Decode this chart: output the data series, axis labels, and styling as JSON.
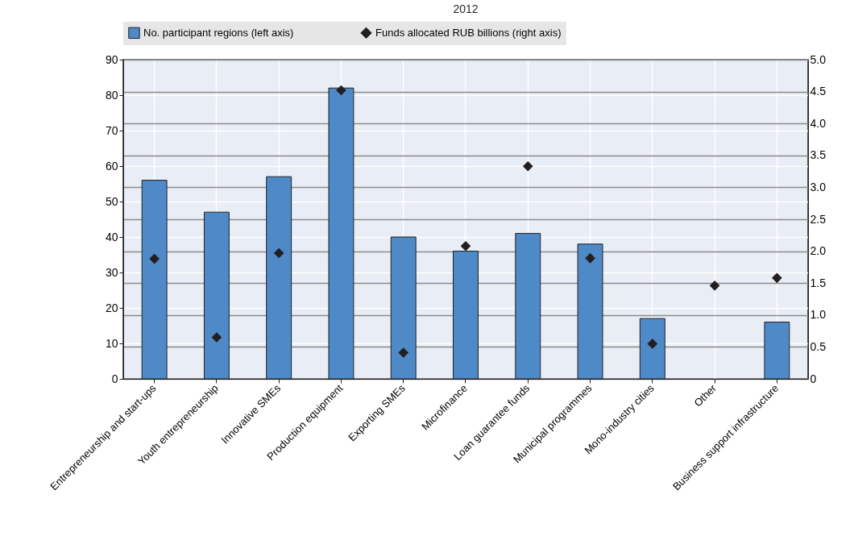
{
  "chart_data": {
    "type": "bar",
    "subtitle": "2012",
    "categories": [
      "Entrepreneurship and start-ups",
      "Youth entrepreneurship",
      "Innovative SMEs",
      "Production equipment",
      "Exporting SMEs",
      "Microfinance",
      "Loan guarantee funds",
      "Municipal programmes",
      "Mono-industry cities",
      "Other",
      "Business support infrastructure"
    ],
    "series": [
      {
        "name": "No. participant regions (left axis)",
        "color": "#4e89c8",
        "values": [
          56,
          47,
          57,
          82,
          40,
          36,
          41,
          38,
          17,
          null,
          16
        ]
      },
      {
        "name": "Funds allocated RUB billions (right axis)",
        "type": "scatter",
        "axis": "y2",
        "color": "#231f20",
        "values": [
          1.88,
          0.65,
          1.97,
          4.52,
          0.41,
          2.08,
          3.33,
          1.89,
          0.55,
          1.46,
          1.58
        ]
      }
    ],
    "ylim": [
      0,
      90
    ],
    "yticks": [
      0,
      10,
      20,
      30,
      40,
      50,
      60,
      70,
      80,
      90
    ],
    "y2lim": [
      0,
      5
    ],
    "y2ticks": [
      0,
      0.5,
      {
        "value": 1,
        "label": "1.0"
      },
      1.5,
      {
        "value": 2,
        "label": "2.0"
      },
      2.5,
      {
        "value": 3,
        "label": "3.0"
      },
      3.5,
      {
        "value": 4,
        "label": "4.0"
      },
      4.5,
      {
        "value": 5,
        "label": "5.0"
      }
    ],
    "marker": "diamond",
    "grid": true,
    "legend": "top"
  }
}
